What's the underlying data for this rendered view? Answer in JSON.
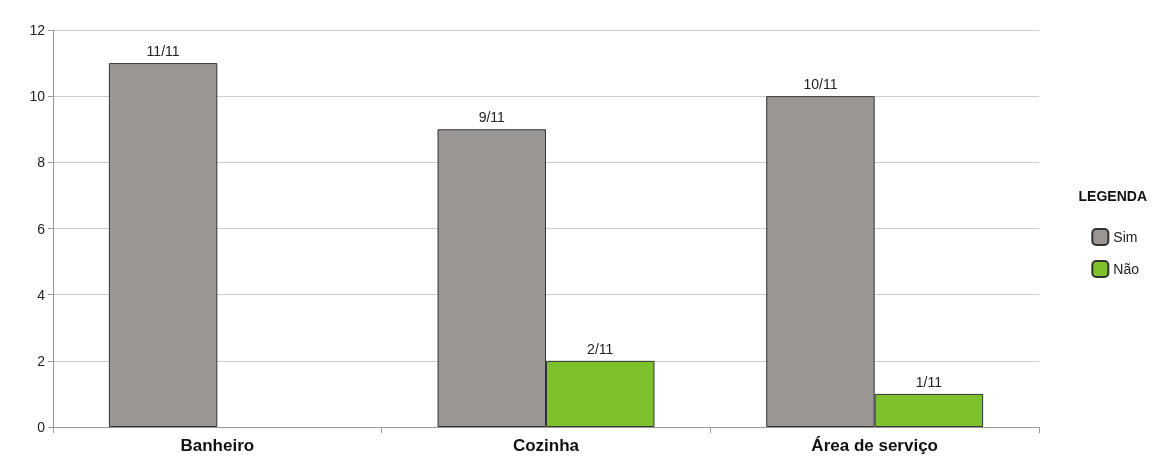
{
  "chart_data": {
    "type": "bar",
    "categories": [
      "Banheiro",
      "Cozinha",
      "Área de serviço"
    ],
    "series": [
      {
        "name": "Sim",
        "color": "#999693",
        "values": [
          11,
          9,
          10
        ],
        "value_labels": [
          "11/11",
          "9/11",
          "10/11"
        ]
      },
      {
        "name": "Não",
        "color": "#7dc22c",
        "values": [
          null,
          2,
          1
        ],
        "value_labels": [
          null,
          "2/11",
          "1/11"
        ]
      }
    ],
    "ylim": [
      0,
      12
    ],
    "yticks": [
      0,
      2,
      4,
      6,
      8,
      10,
      12
    ],
    "grid": "y",
    "legend": "right",
    "legend_title": "LEGENDA"
  }
}
